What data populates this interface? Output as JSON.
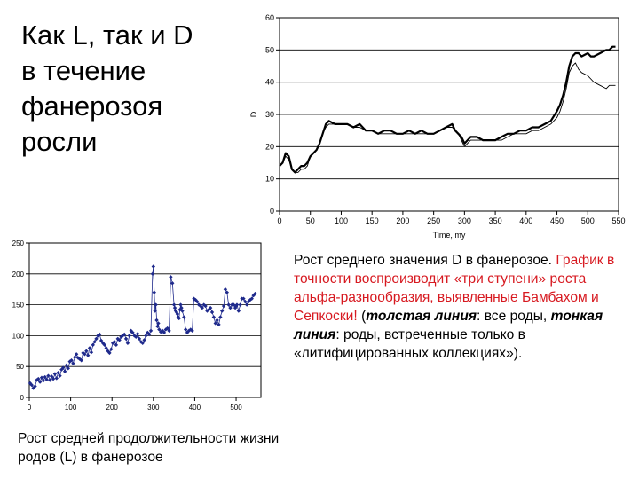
{
  "title": {
    "lines": [
      "Как L, так и D",
      "в течение",
      "фанерозоя",
      "росли"
    ]
  },
  "caption_d": {
    "lead": "Рост среднего значения D в фанерозое.",
    "red": "График в точности воспроизводит «три ступени» роста альфа-разнообразия, выявленные Бамбахом и Сепкоски!",
    "p1": "(",
    "i1": "толстая линия",
    "p2": ": все роды, ",
    "i2": "тонкая линия",
    "p3": ": роды, встреченные только в «литифицированных коллекциях»)."
  },
  "caption_l": {
    "text": "Рост средней продолжительности жизни родов (L) в фанерозое"
  },
  "colors": {
    "marker": "#1f2a8c",
    "red_text": "#d71920",
    "line": "#000000",
    "grid": "#000000"
  },
  "chart_data": [
    {
      "id": "D",
      "type": "line",
      "title": "",
      "xlabel": "Time, my",
      "ylabel": "D",
      "xlim": [
        0,
        550
      ],
      "ylim": [
        0,
        60
      ],
      "xticks": [
        0,
        50,
        100,
        150,
        200,
        250,
        300,
        350,
        400,
        450,
        500,
        550
      ],
      "yticks": [
        0,
        10,
        20,
        30,
        40,
        50,
        60
      ],
      "grid": "horizontal",
      "series": [
        {
          "style": "thick",
          "x": [
            0,
            5,
            10,
            15,
            20,
            25,
            30,
            35,
            40,
            45,
            50,
            55,
            60,
            65,
            70,
            75,
            80,
            90,
            100,
            110,
            120,
            130,
            140,
            150,
            160,
            170,
            180,
            190,
            200,
            210,
            220,
            230,
            240,
            250,
            260,
            270,
            280,
            285,
            290,
            295,
            300,
            305,
            310,
            320,
            330,
            340,
            350,
            360,
            370,
            380,
            390,
            400,
            410,
            420,
            430,
            440,
            450,
            455,
            460,
            465,
            470,
            475,
            480,
            485,
            490,
            500,
            505,
            510,
            520,
            530,
            535,
            540,
            545
          ],
          "y": [
            14,
            15,
            18,
            17,
            13,
            12,
            13,
            14,
            14,
            15,
            17,
            18,
            19,
            21,
            24,
            27,
            28,
            27,
            27,
            27,
            26,
            27,
            25,
            25,
            24,
            25,
            25,
            24,
            24,
            25,
            24,
            25,
            24,
            24,
            25,
            26,
            27,
            25,
            24,
            23,
            21,
            22,
            23,
            23,
            22,
            22,
            22,
            23,
            24,
            24,
            25,
            25,
            26,
            26,
            27,
            28,
            31,
            33,
            36,
            40,
            45,
            48,
            49,
            49,
            48,
            49,
            48,
            48,
            49,
            50,
            50,
            51,
            51
          ]
        },
        {
          "style": "thin",
          "x": [
            0,
            5,
            10,
            15,
            20,
            25,
            30,
            35,
            40,
            45,
            50,
            55,
            60,
            65,
            70,
            75,
            80,
            90,
            100,
            110,
            120,
            130,
            140,
            150,
            160,
            170,
            180,
            190,
            200,
            210,
            220,
            230,
            240,
            250,
            260,
            270,
            280,
            285,
            290,
            295,
            300,
            305,
            310,
            320,
            330,
            340,
            350,
            360,
            370,
            380,
            390,
            400,
            410,
            420,
            430,
            440,
            450,
            455,
            460,
            465,
            470,
            475,
            480,
            485,
            490,
            500,
            505,
            510,
            520,
            530,
            535,
            540,
            545
          ],
          "y": [
            14,
            15,
            17,
            16,
            13,
            12,
            12,
            13,
            13,
            14,
            17,
            18,
            19,
            21,
            24,
            26,
            27,
            27,
            27,
            27,
            26,
            26,
            25,
            25,
            24,
            24,
            24,
            24,
            24,
            24,
            24,
            24,
            24,
            24,
            25,
            26,
            26,
            25,
            24,
            22,
            20,
            21,
            22,
            22,
            22,
            22,
            22,
            22,
            23,
            24,
            24,
            24,
            25,
            25,
            26,
            27,
            29,
            31,
            34,
            38,
            43,
            45,
            46,
            44,
            43,
            42,
            41,
            40,
            39,
            38,
            39,
            39,
            39
          ]
        }
      ]
    },
    {
      "id": "L",
      "type": "scatter",
      "title": "",
      "xlabel": "",
      "ylabel": "",
      "xlim": [
        0,
        560
      ],
      "ylim": [
        0,
        250
      ],
      "xticks": [
        0,
        100,
        200,
        300,
        400,
        500
      ],
      "yticks": [
        0,
        50,
        100,
        150,
        200,
        250
      ],
      "grid": "horizontal",
      "series": [
        {
          "marker": "diamond-line",
          "x": [
            2,
            6,
            10,
            14,
            18,
            22,
            26,
            30,
            34,
            38,
            42,
            46,
            50,
            54,
            58,
            62,
            66,
            70,
            74,
            78,
            82,
            86,
            90,
            94,
            98,
            102,
            106,
            110,
            114,
            118,
            122,
            126,
            130,
            134,
            138,
            142,
            146,
            150,
            154,
            158,
            162,
            166,
            170,
            174,
            178,
            182,
            186,
            190,
            194,
            198,
            202,
            206,
            210,
            214,
            218,
            222,
            226,
            230,
            234,
            238,
            242,
            246,
            250,
            254,
            258,
            262,
            266,
            270,
            274,
            278,
            282,
            286,
            290,
            294,
            298,
            300,
            302,
            304,
            306,
            308,
            310,
            312,
            314,
            318,
            322,
            326,
            330,
            334,
            338,
            342,
            346,
            350,
            352,
            354,
            356,
            358,
            360,
            362,
            364,
            366,
            368,
            370,
            374,
            378,
            382,
            386,
            390,
            394,
            398,
            402,
            406,
            410,
            414,
            418,
            422,
            426,
            430,
            434,
            438,
            442,
            446,
            450,
            454,
            458,
            462,
            466,
            470,
            474,
            478,
            482,
            486,
            490,
            494,
            498,
            500,
            502,
            506,
            510,
            514,
            518,
            522,
            526,
            530,
            534,
            538,
            542,
            546
          ],
          "y": [
            23,
            20,
            15,
            18,
            28,
            30,
            25,
            32,
            27,
            33,
            29,
            35,
            28,
            34,
            30,
            38,
            31,
            40,
            35,
            45,
            48,
            42,
            52,
            47,
            58,
            60,
            55,
            65,
            70,
            64,
            62,
            60,
            72,
            70,
            75,
            68,
            80,
            73,
            85,
            90,
            95,
            100,
            102,
            92,
            88,
            85,
            80,
            75,
            72,
            78,
            88,
            90,
            85,
            95,
            93,
            98,
            100,
            102,
            95,
            88,
            100,
            108,
            105,
            100,
            98,
            103,
            95,
            90,
            88,
            93,
            100,
            105,
            102,
            108,
            200,
            212,
            170,
            140,
            150,
            125,
            115,
            120,
            110,
            106,
            108,
            105,
            110,
            112,
            108,
            195,
            185,
            150,
            145,
            140,
            138,
            135,
            130,
            128,
            142,
            150,
            145,
            140,
            130,
            110,
            105,
            108,
            110,
            108,
            160,
            158,
            155,
            150,
            148,
            145,
            150,
            148,
            140,
            142,
            145,
            138,
            130,
            120,
            125,
            118,
            130,
            140,
            148,
            175,
            170,
            150,
            145,
            150,
            150,
            145,
            148,
            150,
            140,
            150,
            160,
            160,
            155,
            150,
            155,
            158,
            160,
            165,
            168
          ]
        }
      ]
    }
  ]
}
